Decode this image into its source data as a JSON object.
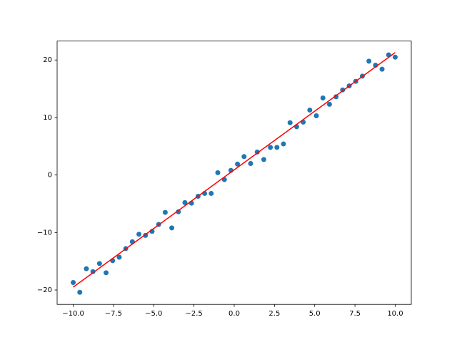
{
  "chart_data": {
    "type": "scatter",
    "xlim": [
      -11,
      11
    ],
    "ylim": [
      -22.5,
      23.3
    ],
    "xticks": [
      {
        "value": -10,
        "label": "−10.0"
      },
      {
        "value": -7.5,
        "label": "−7.5"
      },
      {
        "value": -5,
        "label": "−5.0"
      },
      {
        "value": -2.5,
        "label": "−2.5"
      },
      {
        "value": 0,
        "label": "0.0"
      },
      2.5,
      {
        "value": 5,
        "label": "5.0"
      },
      7.5,
      {
        "value": 10,
        "label": "10.0"
      }
    ],
    "yticks": [
      {
        "value": -20,
        "label": "−20"
      },
      {
        "value": -10,
        "label": "−10"
      },
      0,
      10,
      20
    ],
    "series": [
      {
        "type": "scatter",
        "color": "#1f77b4",
        "x": [
          -10,
          -9.592,
          -9.184,
          -8.776,
          -8.367,
          -7.959,
          -7.551,
          -7.143,
          -6.735,
          -6.327,
          -5.918,
          -5.51,
          -5.102,
          -4.694,
          -4.286,
          -3.878,
          -3.469,
          -3.061,
          -2.653,
          -2.245,
          -1.837,
          -1.429,
          -1.02,
          -0.612,
          -0.204,
          0.204,
          0.612,
          1.02,
          1.429,
          1.837,
          2.245,
          2.653,
          3.061,
          3.469,
          3.878,
          4.286,
          4.694,
          5.102,
          5.51,
          5.918,
          6.327,
          6.735,
          7.143,
          7.551,
          7.959,
          8.367,
          8.776,
          9.184,
          9.592,
          10
        ],
        "values": [
          -18.7,
          -20.4,
          -16.3,
          -16.8,
          -15.4,
          -17.0,
          -14.9,
          -14.3,
          -12.8,
          -11.6,
          -10.3,
          -10.5,
          -9.8,
          -8.6,
          -6.5,
          -9.2,
          -6.4,
          -4.8,
          -4.9,
          -3.7,
          -3.2,
          -3.2,
          0.4,
          -0.8,
          0.8,
          1.9,
          3.2,
          2.0,
          4.0,
          2.7,
          4.8,
          4.8,
          5.4,
          9.1,
          8.4,
          9.2,
          11.3,
          10.3,
          13.4,
          12.3,
          13.6,
          14.8,
          15.5,
          16.3,
          17.2,
          19.8,
          19.1,
          18.4,
          20.9,
          20.5
        ]
      },
      {
        "type": "line",
        "color": "#ff0000",
        "x": [
          -10,
          10
        ],
        "values": [
          -19.5,
          21.3
        ]
      }
    ]
  }
}
